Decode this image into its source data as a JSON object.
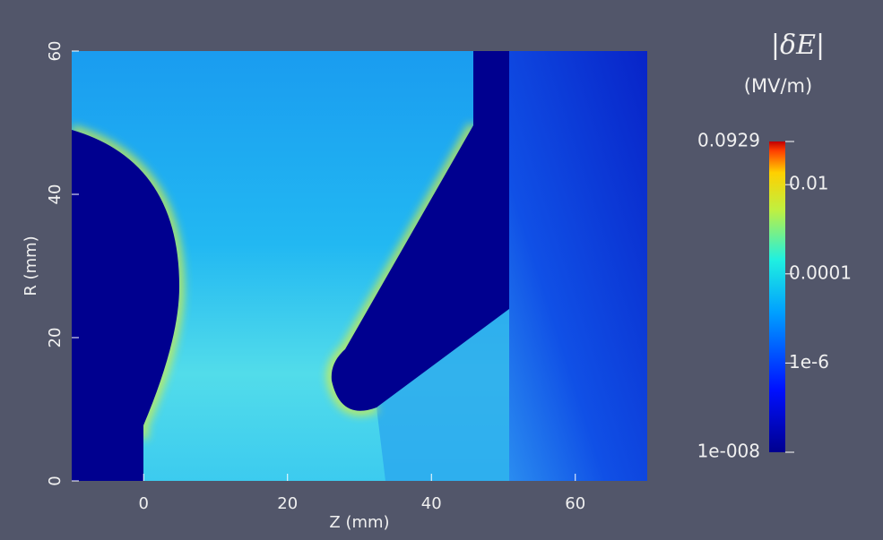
{
  "chart_data": {
    "type": "heatmap",
    "title": "|δE|",
    "subtitle": "(MV/m)",
    "xlabel": "Z (mm)",
    "ylabel": "R (mm)",
    "xlim": [
      -10,
      70
    ],
    "ylim": [
      0,
      60
    ],
    "xticks": [
      0,
      20,
      40,
      60
    ],
    "yticks": [
      0,
      20,
      40,
      60
    ],
    "colorbar": {
      "scale": "log",
      "clim": [
        1e-08,
        0.0929
      ],
      "colormap": "jet",
      "ticks": [
        0.0929,
        0.01,
        0.0001,
        {
          "value": 1e-06,
          "label": "1e-6"
        },
        {
          "value": 1e-08,
          "label": "1e-008"
        }
      ]
    }
  }
}
